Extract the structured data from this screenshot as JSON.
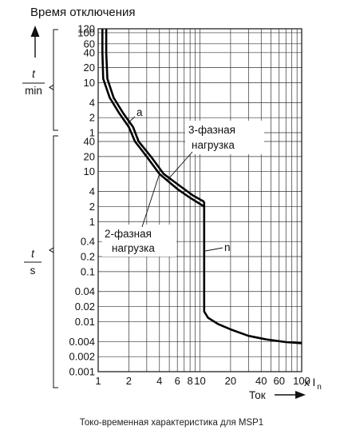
{
  "chart_data": {
    "type": "line",
    "title": "Время отключения",
    "caption": "Токо-временная характеристика для MSP1",
    "xlabel": "Ток",
    "x_unit_suffix": "x I",
    "x_unit_sub": "n",
    "xscale": "log",
    "xlim": [
      1,
      100
    ],
    "x_ticks": [
      1,
      2,
      4,
      6,
      8,
      10,
      20,
      40,
      60,
      100
    ],
    "x_tick_labels": [
      "1",
      "2",
      "4",
      "6",
      "8",
      "10",
      "20",
      "40",
      "60",
      "100"
    ],
    "upper_axis": {
      "label_numerator": "t",
      "label_denominator": "min",
      "unit": "min",
      "yscale": "log",
      "ylim": [
        1,
        120
      ],
      "ticks": [
        120,
        100,
        60,
        40,
        20,
        10,
        4,
        2,
        1
      ],
      "tick_labels": [
        "120",
        "100",
        "60",
        "40",
        "20",
        "10",
        "4",
        "2",
        "1"
      ]
    },
    "lower_axis": {
      "label_numerator": "t",
      "label_denominator": "s",
      "unit": "s",
      "yscale": "log",
      "ylim": [
        0.001,
        60
      ],
      "ticks": [
        40,
        20,
        10,
        4,
        2,
        1,
        0.4,
        0.2,
        0.1,
        0.04,
        0.02,
        0.01,
        0.004,
        0.002,
        0.001
      ],
      "tick_labels": [
        "40",
        "20",
        "10",
        "4",
        "2",
        "1",
        "0.4",
        "0.2",
        "0.1",
        "0.04",
        "0.02",
        "0.01",
        "0.004",
        "0.002",
        "0.001"
      ]
    },
    "grid": true,
    "annotations": [
      {
        "text": "a",
        "target": "thermal"
      },
      {
        "text": "3-фазная",
        "text2": "нагрузка",
        "target": "3-phase"
      },
      {
        "text": "2-фазная",
        "text2": "нагрузка",
        "target": "2-phase"
      },
      {
        "text": "n",
        "target": "magnetic"
      }
    ],
    "series": [
      {
        "curve": "3-phase",
        "points": [
          {
            "x": 1.1,
            "t": 120,
            "unit": "min"
          },
          {
            "x": 1.1,
            "t": 40,
            "unit": "min"
          },
          {
            "x": 1.12,
            "t": 12,
            "unit": "min"
          },
          {
            "x": 1.3,
            "t": 5,
            "unit": "min"
          },
          {
            "x": 1.6,
            "t": 2.5,
            "unit": "min"
          },
          {
            "x": 2.0,
            "t": 1.3,
            "unit": "min"
          },
          {
            "x": 2.3,
            "t": 40,
            "unit": "s"
          },
          {
            "x": 3.0,
            "t": 20,
            "unit": "s"
          },
          {
            "x": 4.0,
            "t": 9,
            "unit": "s"
          },
          {
            "x": 6.0,
            "t": 4.5,
            "unit": "s"
          },
          {
            "x": 8.0,
            "t": 3,
            "unit": "s"
          },
          {
            "x": 11.0,
            "t": 2.0,
            "unit": "s"
          }
        ]
      },
      {
        "curve": "2-phase",
        "points": [
          {
            "x": 1.2,
            "t": 120,
            "unit": "min"
          },
          {
            "x": 1.2,
            "t": 40,
            "unit": "min"
          },
          {
            "x": 1.23,
            "t": 12,
            "unit": "min"
          },
          {
            "x": 1.42,
            "t": 5,
            "unit": "min"
          },
          {
            "x": 1.75,
            "t": 2.5,
            "unit": "min"
          },
          {
            "x": 2.2,
            "t": 1.3,
            "unit": "min"
          },
          {
            "x": 2.5,
            "t": 40,
            "unit": "s"
          },
          {
            "x": 3.3,
            "t": 20,
            "unit": "s"
          },
          {
            "x": 4.4,
            "t": 9,
            "unit": "s"
          },
          {
            "x": 6.5,
            "t": 5,
            "unit": "s"
          },
          {
            "x": 8.6,
            "t": 3.3,
            "unit": "s"
          },
          {
            "x": 11.0,
            "t": 2.5,
            "unit": "s"
          }
        ]
      },
      {
        "curve": "magnetic",
        "points": [
          {
            "x": 11.0,
            "t": 2.5,
            "unit": "s"
          },
          {
            "x": 11.0,
            "t": 0.016,
            "unit": "s"
          },
          {
            "x": 12.0,
            "t": 0.012,
            "unit": "s"
          },
          {
            "x": 15.0,
            "t": 0.009,
            "unit": "s"
          },
          {
            "x": 20.0,
            "t": 0.007,
            "unit": "s"
          },
          {
            "x": 30.0,
            "t": 0.0052,
            "unit": "s"
          },
          {
            "x": 45.0,
            "t": 0.0044,
            "unit": "s"
          },
          {
            "x": 70.0,
            "t": 0.0039,
            "unit": "s"
          },
          {
            "x": 100.0,
            "t": 0.0037,
            "unit": "s"
          }
        ]
      }
    ]
  }
}
